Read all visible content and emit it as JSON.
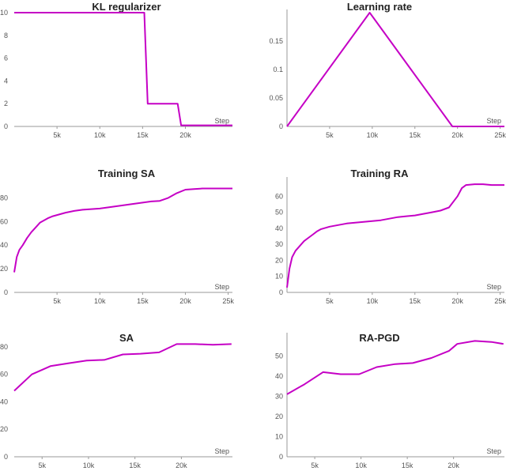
{
  "colors": {
    "series": "#c500c5",
    "axis": "#9a9a9a",
    "text": "#555555",
    "title": "#222222"
  },
  "chart_data": [
    {
      "id": "kl",
      "type": "line",
      "title": "KL regularizer",
      "xlabel": "Step",
      "ylabel": "",
      "xlim": [
        0,
        25500
      ],
      "ylim": [
        0,
        10
      ],
      "xticks": [
        5000,
        10000,
        15000,
        20000
      ],
      "xtick_labels": [
        "5k",
        "10k",
        "15k",
        "20k"
      ],
      "yticks": [
        0,
        2,
        4,
        6,
        8,
        10
      ],
      "ytick_labels": [
        "0",
        "2",
        "4",
        "6",
        "8",
        "10"
      ],
      "grid": false,
      "series": [
        {
          "x": [
            0,
            15200,
            15600,
            19100,
            19500,
            25500
          ],
          "y": [
            10,
            10,
            2,
            2,
            0.1,
            0.1
          ]
        }
      ]
    },
    {
      "id": "lr",
      "type": "line",
      "title": "Learning rate",
      "xlabel": "Step",
      "ylabel": "",
      "xlim": [
        0,
        25500
      ],
      "ylim": [
        0,
        0.2
      ],
      "xticks": [
        5000,
        10000,
        15000,
        20000,
        25000
      ],
      "xtick_labels": [
        "5k",
        "10k",
        "15k",
        "20k",
        "25k"
      ],
      "yticks": [
        0,
        0.05,
        0.1,
        0.15
      ],
      "ytick_labels": [
        "0",
        "0.05",
        "0.1",
        "0.15"
      ],
      "grid": false,
      "series": [
        {
          "x": [
            0,
            9700,
            19400,
            25500
          ],
          "y": [
            0,
            0.2,
            0,
            0
          ]
        }
      ]
    },
    {
      "id": "training-sa",
      "type": "line",
      "title": "Training SA",
      "xlabel": "Step",
      "ylabel": "",
      "xlim": [
        0,
        25500
      ],
      "ylim": [
        0,
        95
      ],
      "xticks": [
        5000,
        10000,
        15000,
        20000,
        25000
      ],
      "xtick_labels": [
        "5k",
        "10k",
        "15k",
        "20k",
        "25k"
      ],
      "yticks": [
        0,
        20,
        40,
        60,
        80
      ],
      "ytick_labels": [
        "0",
        "20",
        "40",
        "60",
        "80"
      ],
      "grid": false,
      "series": [
        {
          "x": [
            0,
            300,
            600,
            1000,
            1500,
            2000,
            2500,
            3000,
            3500,
            4000,
            4500,
            5000,
            6000,
            7000,
            8000,
            9000,
            10000,
            11000,
            12000,
            13000,
            14000,
            15000,
            16000,
            17000,
            18000,
            19000,
            20000,
            21000,
            22000,
            23000,
            24000,
            25000,
            25500
          ],
          "y": [
            17,
            30,
            36,
            40,
            46,
            51,
            55,
            59,
            61,
            63,
            64.5,
            65.5,
            67.5,
            69,
            70,
            70.5,
            71,
            72,
            73,
            74,
            75,
            76,
            77,
            77.5,
            80,
            84,
            87,
            87.5,
            88,
            88,
            88,
            88,
            88
          ]
        }
      ]
    },
    {
      "id": "training-ra",
      "type": "line",
      "title": "Training RA",
      "xlabel": "Step",
      "ylabel": "",
      "xlim": [
        0,
        25500
      ],
      "ylim": [
        0,
        70
      ],
      "xticks": [
        5000,
        10000,
        15000,
        20000,
        25000
      ],
      "xtick_labels": [
        "5k",
        "10k",
        "15k",
        "20k",
        "25k"
      ],
      "yticks": [
        0,
        10,
        20,
        30,
        40,
        50,
        60
      ],
      "ytick_labels": [
        "0",
        "10",
        "20",
        "30",
        "40",
        "50",
        "60"
      ],
      "grid": false,
      "series": [
        {
          "x": [
            0,
            300,
            600,
            1000,
            1500,
            2000,
            2500,
            3000,
            3500,
            4000,
            5000,
            6000,
            7000,
            8000,
            9000,
            10000,
            11000,
            12000,
            13000,
            14000,
            15000,
            16000,
            17000,
            18000,
            19000,
            20000,
            20500,
            21000,
            22000,
            23000,
            24000,
            25000,
            25500
          ],
          "y": [
            3,
            15,
            22,
            26,
            29,
            32,
            34,
            36,
            38,
            39.5,
            41,
            42,
            43,
            43.5,
            44,
            44.5,
            45,
            46,
            47,
            47.5,
            48,
            49,
            50,
            51,
            53,
            60,
            65,
            67,
            67.5,
            67.5,
            67,
            67,
            67
          ]
        }
      ]
    },
    {
      "id": "sa",
      "type": "line",
      "title": "SA",
      "xlabel": "Step",
      "ylabel": "",
      "xlim": [
        2000,
        25500
      ],
      "ylim": [
        0,
        88
      ],
      "xticks": [
        5000,
        10000,
        15000,
        20000
      ],
      "xtick_labels": [
        "5k",
        "10k",
        "15k",
        "20k"
      ],
      "yticks": [
        0,
        20,
        40,
        60,
        80
      ],
      "ytick_labels": [
        "0",
        "20",
        "40",
        "60",
        "80"
      ],
      "grid": false,
      "series": [
        {
          "x": [
            2000,
            3900,
            5900,
            7800,
            9800,
            11700,
            13700,
            15600,
            17600,
            19500,
            21500,
            23400,
            25400
          ],
          "y": [
            48,
            60,
            66,
            68,
            70,
            70.5,
            74.5,
            75,
            76,
            82,
            82,
            81.5,
            82
          ]
        }
      ]
    },
    {
      "id": "ra-pgd",
      "type": "line",
      "title": "RA-PGD",
      "xlabel": "Step",
      "ylabel": "",
      "xlim": [
        2000,
        25500
      ],
      "ylim": [
        0,
        60
      ],
      "xticks": [
        5000,
        10000,
        15000,
        20000
      ],
      "xtick_labels": [
        "5k",
        "10k",
        "15k",
        "20k"
      ],
      "yticks": [
        0,
        10,
        20,
        30,
        40,
        50
      ],
      "ytick_labels": [
        "0",
        "10",
        "20",
        "30",
        "40",
        "50"
      ],
      "grid": false,
      "series": [
        {
          "x": [
            2000,
            3900,
            5900,
            7800,
            9800,
            11700,
            13700,
            15600,
            17600,
            19500,
            20400,
            22300,
            24100,
            25400
          ],
          "y": [
            31,
            36,
            42,
            41,
            41,
            44.5,
            46,
            46.5,
            49,
            52.5,
            56,
            57.5,
            57,
            56
          ]
        }
      ]
    }
  ]
}
